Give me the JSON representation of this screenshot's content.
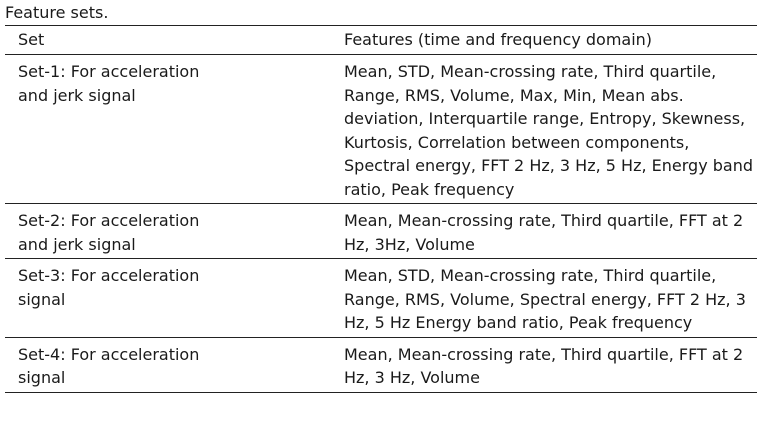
{
  "caption": "Feature sets.",
  "table": {
    "headers": {
      "set": "Set",
      "features": "Features (time and frequency domain)"
    },
    "rows": [
      {
        "set": "Set-1: For acceleration and jerk signal",
        "features": "Mean, STD, Mean-crossing rate, Third quartile, Range, RMS, Volume, Max, Min, Mean abs. deviation, Interquartile range, Entropy, Skewness, Kurtosis, Correlation between components, Spectral energy, FFT 2 Hz, 3 Hz, 5 Hz, Energy band ratio, Peak frequency"
      },
      {
        "set": "Set-2: For acceleration and jerk signal",
        "features": "Mean, Mean-crossing rate, Third quartile, FFT at 2 Hz, 3Hz, Volume"
      },
      {
        "set": "Set-3: For acceleration signal",
        "features": "Mean, STD, Mean-crossing rate, Third quartile, Range, RMS, Volume, Spectral energy, FFT 2 Hz, 3 Hz, 5 Hz Energy band ratio, Peak frequency"
      },
      {
        "set": "Set-4: For acceleration signal",
        "features": "Mean, Mean-crossing rate, Third quartile, FFT at 2 Hz, 3 Hz, Volume"
      }
    ]
  }
}
